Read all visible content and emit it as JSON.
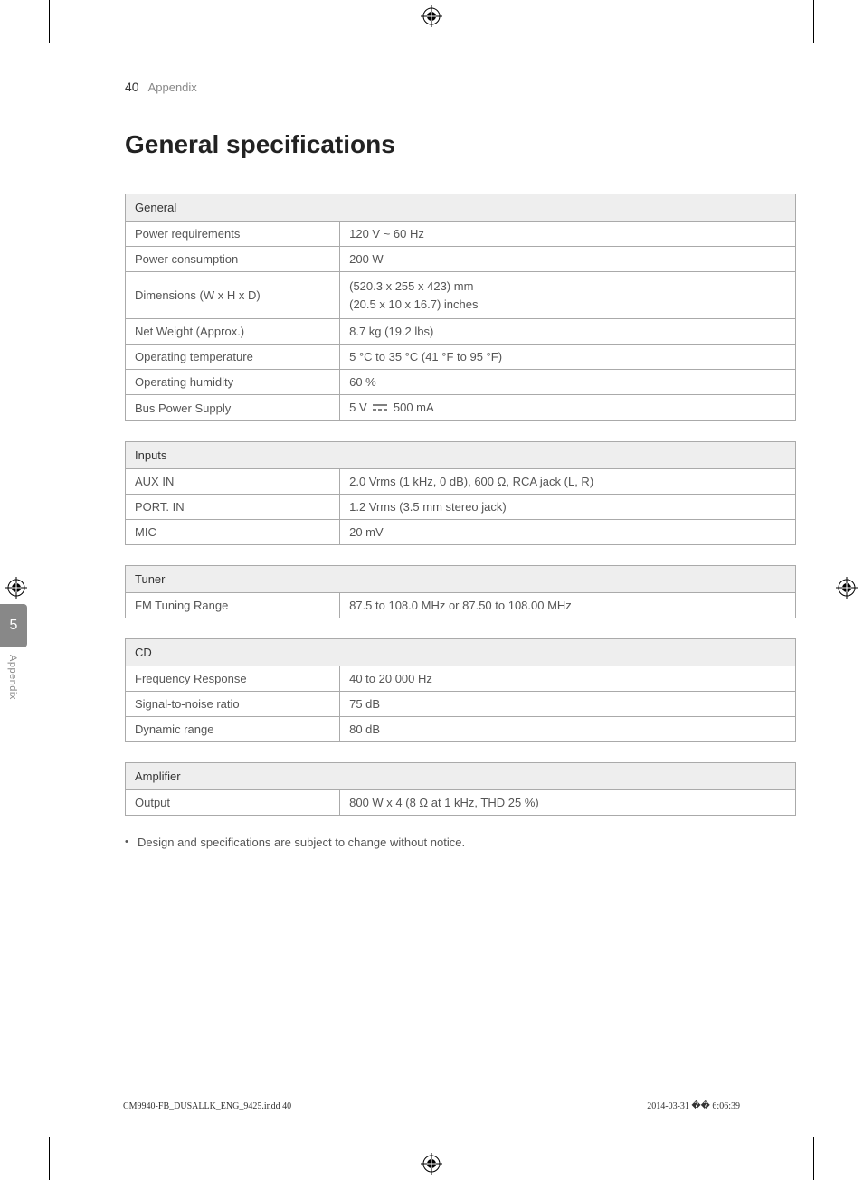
{
  "header": {
    "page_number": "40",
    "section_label": "Appendix"
  },
  "title": "General specifications",
  "tables": {
    "general": {
      "header": "General",
      "rows": [
        {
          "label": "Power requirements",
          "value": "120 V ~ 60 Hz"
        },
        {
          "label": "Power consumption",
          "value": "200 W"
        },
        {
          "label": "Dimensions (W x H x D)",
          "value": "(520.3 x 255 x 423) mm\n(20.5 x 10 x 16.7) inches"
        },
        {
          "label": "Net Weight (Approx.)",
          "value": "8.7 kg (19.2 lbs)"
        },
        {
          "label": "Operating temperature",
          "value": "5 °C to 35 °C (41 °F to 95 °F)"
        },
        {
          "label": "Operating humidity",
          "value": "60 %"
        },
        {
          "label": "Bus Power Supply",
          "value": "__DC__"
        }
      ],
      "dc_prefix": "5 V",
      "dc_suffix": " 500 mA"
    },
    "inputs": {
      "header": "Inputs",
      "rows": [
        {
          "label": "AUX IN",
          "value": "2.0 Vrms (1 kHz, 0 dB), 600 Ω, RCA jack (L, R)"
        },
        {
          "label": "PORT. IN",
          "value": "1.2 Vrms (3.5 mm stereo jack)"
        },
        {
          "label": "MIC",
          "value": "20 mV"
        }
      ]
    },
    "tuner": {
      "header": "Tuner",
      "rows": [
        {
          "label": "FM Tuning Range",
          "value": "87.5 to 108.0 MHz or 87.50 to 108.00 MHz"
        }
      ]
    },
    "cd": {
      "header": "CD",
      "rows": [
        {
          "label": "Frequency Response",
          "value": "40 to 20 000 Hz"
        },
        {
          "label": "Signal-to-noise ratio",
          "value": "75 dB"
        },
        {
          "label": "Dynamic range",
          "value": "80 dB"
        }
      ]
    },
    "amplifier": {
      "header": "Amplifier",
      "rows": [
        {
          "label": "Output",
          "value": "800 W x 4 (8 Ω at 1 kHz, THD 25 %)"
        }
      ]
    }
  },
  "note": "Design and specifications are subject to change without notice.",
  "side_tab": {
    "number": "5",
    "label": "Appendix"
  },
  "footer": {
    "left": "CM9940-FB_DUSALLK_ENG_9425.indd   40",
    "right": "2014-03-31   �� 6:06:39"
  },
  "colors": {
    "text_primary": "#333333",
    "text_secondary": "#555555",
    "text_muted": "#888888",
    "table_header_bg": "#eeeeee",
    "table_border": "#aaaaaa",
    "tab_bg": "#888888",
    "background": "#ffffff"
  }
}
